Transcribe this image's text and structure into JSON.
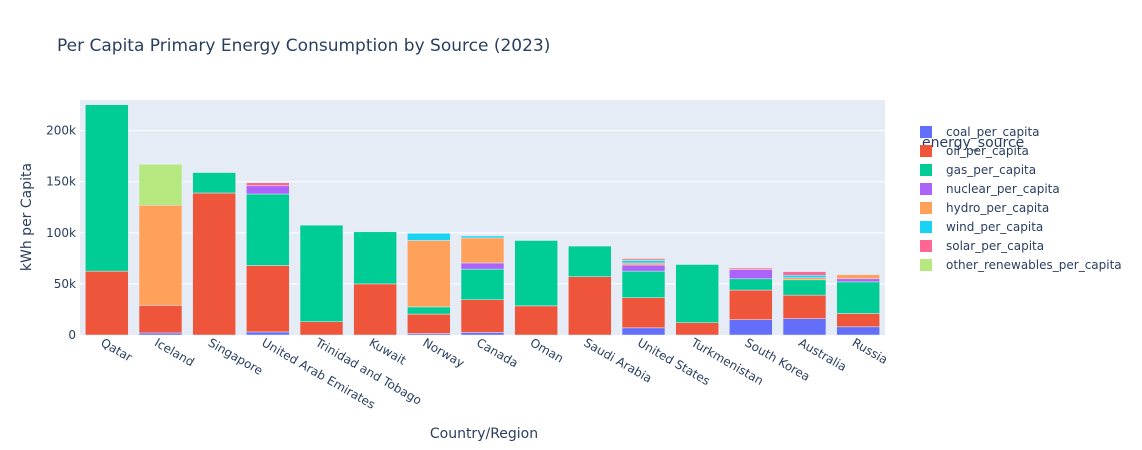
{
  "chart_data": {
    "type": "bar",
    "barmode": "stack",
    "title": "Per Capita Primary Energy Consumption by Source (2023)",
    "xlabel": "Country/Region",
    "ylabel": "kWh per Capita",
    "ylim": [
      0,
      230000
    ],
    "yticks": [
      {
        "value": 0,
        "label": "0"
      },
      {
        "value": 50000,
        "label": "50k"
      },
      {
        "value": 100000,
        "label": "100k"
      },
      {
        "value": 150000,
        "label": "150k"
      },
      {
        "value": 200000,
        "label": "200k"
      }
    ],
    "grid": true,
    "legend_title": "energy_source",
    "legend_position": "right",
    "categories": [
      "Qatar",
      "Iceland",
      "Singapore",
      "United Arab Emirates",
      "Trinidad and Tobago",
      "Kuwait",
      "Norway",
      "Canada",
      "Oman",
      "Saudi Arabia",
      "United States",
      "Turkmenistan",
      "South Korea",
      "Australia",
      "Russia"
    ],
    "series": [
      {
        "name": "coal_per_capita",
        "color": "#636efa",
        "values": [
          0,
          2000,
          0,
          3000,
          0,
          0,
          1500,
          2500,
          0,
          0,
          7000,
          0,
          15000,
          16000,
          8000
        ]
      },
      {
        "name": "oil_per_capita",
        "color": "#ef553b",
        "values": [
          62500,
          27000,
          139000,
          65000,
          13000,
          50000,
          19000,
          32000,
          28500,
          57000,
          29500,
          12000,
          29000,
          23000,
          13000
        ]
      },
      {
        "name": "gas_per_capita",
        "color": "#00cc96",
        "values": [
          163000,
          0,
          20000,
          70000,
          94500,
          51000,
          7000,
          30000,
          64000,
          30000,
          26000,
          57000,
          11000,
          15000,
          31000
        ]
      },
      {
        "name": "nuclear_per_capita",
        "color": "#ab63fa",
        "values": [
          0,
          0,
          0,
          8000,
          0,
          0,
          0,
          6000,
          0,
          0,
          6000,
          0,
          9000,
          0,
          3000
        ]
      },
      {
        "name": "hydro_per_capita",
        "color": "#ffa15a",
        "values": [
          0,
          98000,
          0,
          0,
          0,
          0,
          65000,
          24500,
          0,
          0,
          2000,
          0,
          0,
          2000,
          4000
        ]
      },
      {
        "name": "wind_per_capita",
        "color": "#19d3f3",
        "values": [
          0,
          0,
          0,
          0,
          0,
          0,
          7000,
          2000,
          0,
          0,
          2500,
          0,
          0,
          2500,
          0
        ]
      },
      {
        "name": "solar_per_capita",
        "color": "#ff6692",
        "values": [
          500,
          0,
          0,
          3000,
          0,
          0,
          0,
          500,
          0,
          0,
          1500,
          0,
          1500,
          3500,
          0
        ]
      },
      {
        "name": "other_renewables_per_capita",
        "color": "#b6e880",
        "values": [
          0,
          40000,
          0,
          0,
          0,
          0,
          0,
          0,
          0,
          0,
          1000,
          0,
          0,
          0,
          0
        ]
      }
    ]
  }
}
